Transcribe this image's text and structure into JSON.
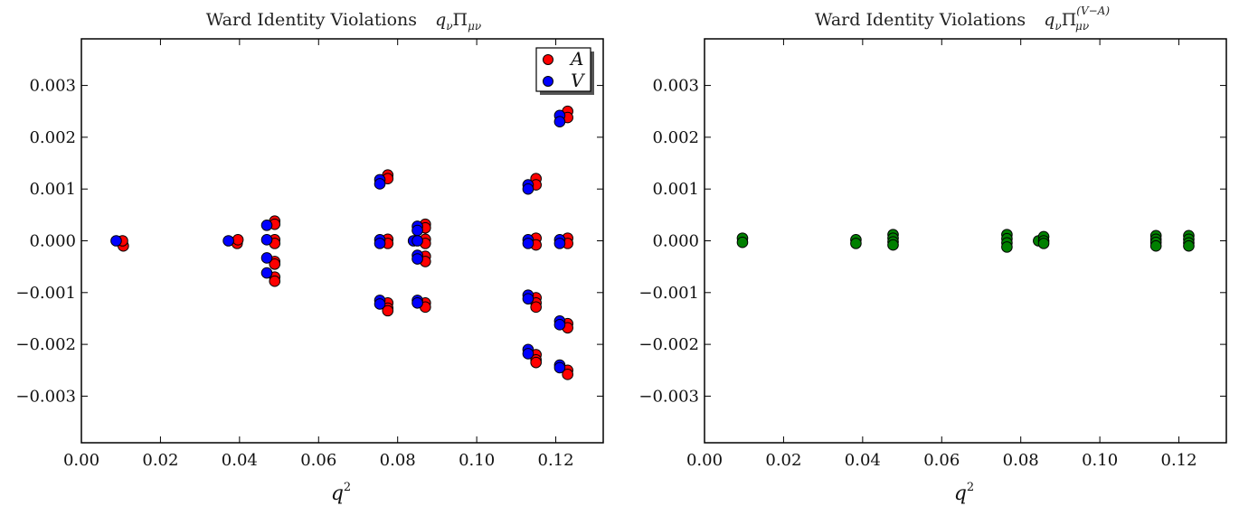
{
  "chart_data": [
    {
      "type": "scatter",
      "title": "Ward Identity Violations",
      "title_math": "q_ν Π_{μν}",
      "xlabel": "q",
      "xlabel_sup": "2",
      "ylabel": "",
      "xlim": [
        0.0,
        0.132
      ],
      "ylim": [
        -0.0039,
        0.0039
      ],
      "xticks": [
        0.0,
        0.02,
        0.04,
        0.06,
        0.08,
        0.1,
        0.12
      ],
      "xtick_labels": [
        "0.00",
        "0.02",
        "0.04",
        "0.06",
        "0.08",
        "0.10",
        "0.12"
      ],
      "yticks": [
        0.003,
        0.002,
        0.001,
        0.0,
        -0.001,
        -0.002,
        -0.003
      ],
      "ytick_labels": [
        "0.003",
        "0.002",
        "0.001",
        "0.000",
        "−0.001",
        "−0.002",
        "−0.003"
      ],
      "grid": false,
      "legend": "top-right",
      "series": [
        {
          "name": "A",
          "color": "#ff0000",
          "points": [
            [
              0.0104,
              -5e-05
            ],
            [
              0.0106,
              -0.0001
            ],
            [
              0.0104,
              0.0
            ],
            [
              0.0394,
              0.0
            ],
            [
              0.0394,
              -5e-05
            ],
            [
              0.0396,
              2e-05
            ],
            [
              0.0489,
              0.00038
            ],
            [
              0.0489,
              0.00032
            ],
            [
              0.0489,
              2e-05
            ],
            [
              0.0489,
              -5e-05
            ],
            [
              0.0489,
              -0.0004
            ],
            [
              0.0489,
              -0.00045
            ],
            [
              0.0489,
              -0.0007
            ],
            [
              0.0489,
              -0.00078
            ],
            [
              0.0775,
              0.00127
            ],
            [
              0.0775,
              0.0012
            ],
            [
              0.0775,
              3e-05
            ],
            [
              0.0775,
              -5e-05
            ],
            [
              0.0775,
              -0.0012
            ],
            [
              0.0775,
              -0.0013
            ],
            [
              0.0775,
              -0.00135
            ],
            [
              0.087,
              0.00032
            ],
            [
              0.087,
              0.00025
            ],
            [
              0.087,
              3e-05
            ],
            [
              0.087,
              -5e-05
            ],
            [
              0.087,
              -0.0003
            ],
            [
              0.087,
              -0.0004
            ],
            [
              0.087,
              -0.0012
            ],
            [
              0.087,
              -0.00128
            ],
            [
              0.115,
              0.0012
            ],
            [
              0.115,
              0.00108
            ],
            [
              0.115,
              5e-05
            ],
            [
              0.115,
              -8e-05
            ],
            [
              0.115,
              -0.0011
            ],
            [
              0.115,
              -0.0012
            ],
            [
              0.115,
              -0.00128
            ],
            [
              0.115,
              -0.0022
            ],
            [
              0.115,
              -0.0023
            ],
            [
              0.115,
              -0.00235
            ],
            [
              0.123,
              0.0025
            ],
            [
              0.123,
              0.00238
            ],
            [
              0.123,
              5e-05
            ],
            [
              0.123,
              -5e-05
            ],
            [
              0.123,
              -0.0016
            ],
            [
              0.123,
              -0.00168
            ],
            [
              0.123,
              -0.0025
            ],
            [
              0.123,
              -0.00258
            ]
          ]
        },
        {
          "name": "V",
          "color": "#0000ff",
          "points": [
            [
              0.0088,
              0.0
            ],
            [
              0.0372,
              0.0
            ],
            [
              0.0469,
              0.0003
            ],
            [
              0.0469,
              2e-05
            ],
            [
              0.0469,
              -0.00033
            ],
            [
              0.0469,
              -0.00062
            ],
            [
              0.0755,
              0.00118
            ],
            [
              0.0755,
              0.0011
            ],
            [
              0.0755,
              2e-05
            ],
            [
              0.0755,
              -5e-05
            ],
            [
              0.0755,
              -0.00115
            ],
            [
              0.0755,
              -0.00122
            ],
            [
              0.084,
              0.0
            ],
            [
              0.085,
              0.00028
            ],
            [
              0.085,
              0.0002
            ],
            [
              0.085,
              0.0
            ],
            [
              0.085,
              -0.00028
            ],
            [
              0.085,
              -0.00035
            ],
            [
              0.085,
              -0.00115
            ],
            [
              0.085,
              -0.0012
            ],
            [
              0.113,
              0.00108
            ],
            [
              0.113,
              0.001
            ],
            [
              0.113,
              2e-05
            ],
            [
              0.113,
              -5e-05
            ],
            [
              0.113,
              -0.00105
            ],
            [
              0.113,
              -0.00112
            ],
            [
              0.113,
              -0.0021
            ],
            [
              0.113,
              -0.00218
            ],
            [
              0.121,
              0.00242
            ],
            [
              0.121,
              0.0023
            ],
            [
              0.121,
              2e-05
            ],
            [
              0.121,
              -5e-05
            ],
            [
              0.121,
              -0.00155
            ],
            [
              0.121,
              -0.00162
            ],
            [
              0.121,
              -0.0024
            ],
            [
              0.121,
              -0.00245
            ]
          ]
        }
      ]
    },
    {
      "type": "scatter",
      "title": "Ward Identity Violations",
      "title_math": "q_ν Π^{(V−A)}_{μν}",
      "xlabel": "q",
      "xlabel_sup": "2",
      "ylabel": "",
      "xlim": [
        0.0,
        0.132
      ],
      "ylim": [
        -0.0039,
        0.0039
      ],
      "xticks": [
        0.0,
        0.02,
        0.04,
        0.06,
        0.08,
        0.1,
        0.12
      ],
      "xtick_labels": [
        "0.00",
        "0.02",
        "0.04",
        "0.06",
        "0.08",
        "0.10",
        "0.12"
      ],
      "yticks": [
        0.003,
        0.002,
        0.001,
        0.0,
        -0.001,
        -0.002,
        -0.003
      ],
      "ytick_labels": [
        "0.003",
        "0.002",
        "0.001",
        "0.000",
        "−0.001",
        "−0.002",
        "−0.003"
      ],
      "grid": false,
      "series": [
        {
          "color": "#008000",
          "points": [
            [
              0.0096,
              5e-05
            ],
            [
              0.0096,
              -3e-05
            ],
            [
              0.0383,
              2e-05
            ],
            [
              0.0383,
              -5e-05
            ],
            [
              0.0477,
              0.00012
            ],
            [
              0.0477,
              5e-05
            ],
            [
              0.0477,
              -2e-05
            ],
            [
              0.0477,
              -8e-05
            ],
            [
              0.0765,
              0.00012
            ],
            [
              0.0765,
              4e-05
            ],
            [
              0.0765,
              -4e-05
            ],
            [
              0.0765,
              -0.00012
            ],
            [
              0.0845,
              0.0
            ],
            [
              0.0858,
              8e-05
            ],
            [
              0.0858,
              0.0
            ],
            [
              0.0858,
              -5e-05
            ],
            [
              0.1142,
              0.0001
            ],
            [
              0.1142,
              3e-05
            ],
            [
              0.1142,
              -3e-05
            ],
            [
              0.1142,
              -0.0001
            ],
            [
              0.1225,
              0.0001
            ],
            [
              0.1225,
              3e-05
            ],
            [
              0.1225,
              -4e-05
            ],
            [
              0.1225,
              -0.0001
            ]
          ]
        }
      ]
    }
  ]
}
